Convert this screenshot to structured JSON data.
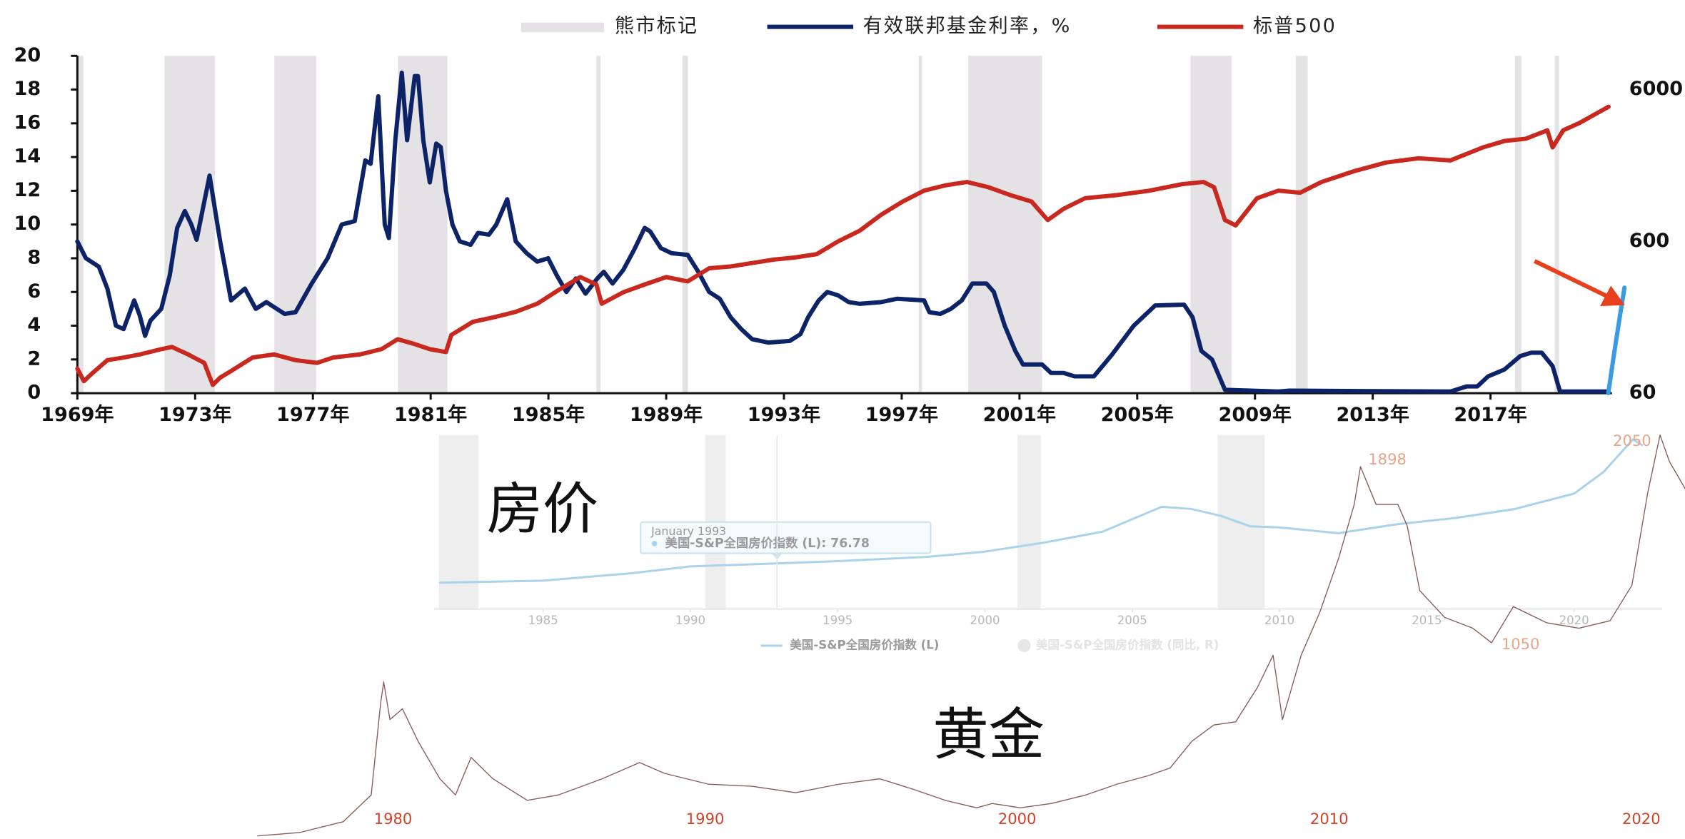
{
  "chart_data": [
    {
      "type": "line",
      "xlim": [
        1969,
        2022
      ],
      "xticks": [
        {
          "value": 1969,
          "label": "1969年"
        },
        {
          "value": 1973,
          "label": "1973年"
        },
        {
          "value": 1977,
          "label": "1977年"
        },
        {
          "value": 1981,
          "label": "1981年"
        },
        {
          "value": 1985,
          "label": "1985年"
        },
        {
          "value": 1989,
          "label": "1989年"
        },
        {
          "value": 1993,
          "label": "1993年"
        },
        {
          "value": 1997,
          "label": "1997年"
        },
        {
          "value": 2001,
          "label": "2001年"
        },
        {
          "value": 2005,
          "label": "2005年"
        },
        {
          "value": 2009,
          "label": "2009年"
        },
        {
          "value": 2013,
          "label": "2013年"
        },
        {
          "value": 2017,
          "label": "2017年"
        }
      ],
      "ylim": [
        0,
        20
      ],
      "yticks": [
        0,
        2,
        4,
        6,
        8,
        10,
        12,
        14,
        16,
        18,
        20
      ],
      "y2lim": [
        60,
        10000
      ],
      "y2ticks": [
        60,
        600,
        6000
      ],
      "y2scale": "log",
      "bear_markets": {
        "name": "熊市标记",
        "color": "#e4e2e4",
        "ranges": [
          [
            1969.0,
            1969.2
          ],
          [
            1971.96,
            1973.67
          ],
          [
            1975.69,
            1977.11
          ],
          [
            1979.89,
            1981.57
          ],
          [
            1986.63,
            1986.77
          ],
          [
            1989.55,
            1989.74
          ],
          [
            1997.58,
            1997.69
          ],
          [
            1999.26,
            2001.77
          ],
          [
            2006.81,
            2008.2
          ],
          [
            2010.39,
            2010.79
          ],
          [
            2017.83,
            2018.05
          ],
          [
            2019.18,
            2019.33
          ]
        ]
      },
      "series": [
        {
          "name": "有效联邦基金利率，%",
          "color": "#0d2367",
          "x": [
            1969.0,
            1969.29,
            1969.73,
            1970.02,
            1970.31,
            1970.57,
            1970.93,
            1971.12,
            1971.3,
            1971.48,
            1971.85,
            1972.14,
            1972.39,
            1972.65,
            1972.87,
            1973.05,
            1973.49,
            1973.85,
            1974.22,
            1974.69,
            1975.06,
            1975.42,
            1976.04,
            1976.41,
            1976.96,
            1977.5,
            1977.98,
            1978.42,
            1978.78,
            1978.96,
            1979.22,
            1979.44,
            1979.58,
            1979.8,
            1980.02,
            1980.2,
            1980.46,
            1980.57,
            1980.75,
            1980.97,
            1981.19,
            1981.34,
            1981.52,
            1981.74,
            1981.99,
            1982.36,
            1982.61,
            1982.98,
            1983.23,
            1983.6,
            1983.89,
            1984.26,
            1984.62,
            1984.99,
            1985.28,
            1985.61,
            1985.93,
            1986.26,
            1986.66,
            1986.88,
            1987.18,
            1987.54,
            1987.91,
            1988.27,
            1988.45,
            1988.82,
            1989.18,
            1989.73,
            1990.09,
            1990.46,
            1990.82,
            1991.19,
            1991.55,
            1991.92,
            1992.47,
            1993.2,
            1993.56,
            1993.82,
            1994.18,
            1994.47,
            1994.84,
            1995.2,
            1995.57,
            1996.3,
            1996.85,
            1997.76,
            1997.94,
            1998.31,
            1998.67,
            1999.04,
            1999.4,
            1999.88,
            2000.13,
            2000.5,
            2000.86,
            2001.12,
            2001.77,
            2002.07,
            2002.5,
            2002.87,
            2003.53,
            2004.15,
            2004.88,
            2005.61,
            2006.59,
            2006.88,
            2007.18,
            2007.54,
            2007.98,
            2009.8,
            2010.17,
            2015.64,
            2016.19,
            2016.55,
            2016.92,
            2017.47,
            2018.01,
            2018.38,
            2018.74,
            2019.11,
            2019.36,
            2021.01
          ],
          "values": [
            9.0,
            8.0,
            7.5,
            6.2,
            4.0,
            3.8,
            5.5,
            4.6,
            3.4,
            4.3,
            5.0,
            7.0,
            9.8,
            10.8,
            10.0,
            9.1,
            12.9,
            9.0,
            5.5,
            6.2,
            5.0,
            5.4,
            4.7,
            4.8,
            6.5,
            8.0,
            10.0,
            10.2,
            13.8,
            13.6,
            17.6,
            10.0,
            9.2,
            15.0,
            19.0,
            15.0,
            18.8,
            18.8,
            15.0,
            12.5,
            14.8,
            14.6,
            12.0,
            10.0,
            9.0,
            8.8,
            9.5,
            9.4,
            10.0,
            11.5,
            9.0,
            8.3,
            7.8,
            8.0,
            7.0,
            6.0,
            6.8,
            5.9,
            6.8,
            7.2,
            6.5,
            7.3,
            8.5,
            9.8,
            9.6,
            8.6,
            8.3,
            8.2,
            7.2,
            6.0,
            5.6,
            4.5,
            3.8,
            3.2,
            3.0,
            3.1,
            3.5,
            4.5,
            5.5,
            6.0,
            5.8,
            5.4,
            5.3,
            5.4,
            5.6,
            5.5,
            4.8,
            4.7,
            5.0,
            5.5,
            6.5,
            6.5,
            6.0,
            4.0,
            2.5,
            1.7,
            1.7,
            1.2,
            1.2,
            1.0,
            1.0,
            2.3,
            4.0,
            5.2,
            5.25,
            4.5,
            2.5,
            2.0,
            0.2,
            0.1,
            0.15,
            0.1,
            0.4,
            0.4,
            1.0,
            1.4,
            2.2,
            2.4,
            2.4,
            1.6,
            0.1,
            0.1
          ]
        },
        {
          "name": "标普500",
          "color": "#c8281e",
          "axis": "y2",
          "x": [
            1969.0,
            1969.22,
            1969.47,
            1970.02,
            1970.57,
            1971.12,
            1971.85,
            1972.21,
            1972.76,
            1973.31,
            1973.6,
            1973.85,
            1974.22,
            1974.95,
            1975.68,
            1976.41,
            1977.14,
            1977.69,
            1978.6,
            1979.33,
            1979.88,
            1980.42,
            1980.97,
            1981.52,
            1981.7,
            1982.43,
            1983.16,
            1983.89,
            1984.62,
            1985.35,
            1986.08,
            1986.63,
            1986.81,
            1987.54,
            1988.27,
            1989.0,
            1989.73,
            1990.46,
            1991.19,
            1991.92,
            1992.65,
            1993.38,
            1994.11,
            1994.84,
            1995.57,
            1996.3,
            1997.03,
            1997.76,
            1998.49,
            1999.22,
            1999.95,
            2000.68,
            2001.41,
            2001.96,
            2002.5,
            2003.23,
            2004.33,
            2005.42,
            2006.52,
            2007.25,
            2007.61,
            2007.98,
            2008.34,
            2009.07,
            2009.8,
            2010.53,
            2011.26,
            2012.36,
            2013.45,
            2014.55,
            2015.64,
            2016.74,
            2017.47,
            2018.2,
            2018.93,
            2019.11,
            2019.47,
            2020.02,
            2021.01
          ],
          "values": [
            87,
            72,
            80,
            99,
            103,
            108,
            117,
            121,
            108,
            95,
            68,
            76,
            84,
            103,
            108,
            99,
            95,
            103,
            108,
            117,
            136,
            127,
            117,
            112,
            145,
            177,
            190,
            206,
            233,
            287,
            349,
            312,
            233,
            277,
            312,
            349,
            327,
            399,
            410,
            432,
            455,
            470,
            494,
            600,
            705,
            898,
            1097,
            1295,
            1404,
            1477,
            1363,
            1212,
            1097,
            829,
            983,
            1155,
            1212,
            1295,
            1428,
            1477,
            1363,
            829,
            764,
            1155,
            1295,
            1254,
            1477,
            1739,
            1983,
            2115,
            2048,
            2494,
            2748,
            2846,
            3234,
            2494,
            3234,
            3612,
            4620
          ]
        },
        {
          "color": "#3b9be0",
          "axis": "y2",
          "x": [
            2021.0,
            2021.2,
            2021.35,
            2021.55
          ],
          "values": [
            60,
            110,
            170,
            297
          ]
        }
      ]
    },
    {
      "type": "line",
      "title": "房价",
      "xlim": [
        1981.3,
        2023
      ],
      "xticks": [
        1985,
        1990,
        1995,
        2000,
        2005,
        2010,
        2015,
        2020
      ],
      "ylim": [
        -10,
        320
      ],
      "color": "#a9d3ea",
      "x": [
        1981.5,
        1985,
        1988,
        1990,
        1993,
        1995,
        1998,
        2000,
        2002,
        2004,
        2006,
        2007,
        2008,
        2009,
        2010,
        2012,
        2014,
        2016,
        2018,
        2020,
        2021,
        2022,
        2022.3
      ],
      "values": [
        40,
        44,
        58,
        71,
        76.78,
        81,
        89,
        99,
        116,
        137,
        184,
        180,
        167,
        147,
        145,
        134,
        151,
        163,
        180,
        209,
        250,
        312,
        301
      ],
      "bear_markets": {
        "color": "#eeeeee",
        "ranges": [
          [
            1981.46,
            1982.8
          ],
          [
            1990.5,
            1991.2
          ],
          [
            2001.1,
            2001.9
          ],
          [
            2007.9,
            2009.5
          ]
        ]
      },
      "legend": [
        {
          "name": "美国-S&P全国房价指数 (L)",
          "color": "#a9d3ea"
        },
        {
          "name": "美国-S&P全国房价指数 (同比, R)",
          "color": "#e6e6e6"
        }
      ],
      "tooltip": {
        "title": "January 1993",
        "text": "美国-S&P全国房价指数 (L): 76.78"
      }
    },
    {
      "type": "line",
      "title": "黄金",
      "xlim": [
        1975.6,
        2021.4
      ],
      "xticks": [
        1980,
        1990,
        2000,
        2010,
        2020
      ],
      "tick_color": "#d0422a",
      "ylim": [
        105,
        2050
      ],
      "color": "#8a5a5a",
      "x": [
        1975.66,
        1977.0,
        1978.4,
        1979.3,
        1979.6,
        1979.7,
        1979.9,
        1980.3,
        1980.8,
        1981.5,
        1982.0,
        1982.5,
        1983.2,
        1984.3,
        1985.3,
        1986.7,
        1987.9,
        1988.7,
        1990.1,
        1991.5,
        1992.9,
        1994.3,
        1995.6,
        1996.7,
        1997.7,
        1998.7,
        1999.2,
        2000.1,
        2001.1,
        2002.2,
        2003.2,
        2004.2,
        2004.9,
        2005.6,
        2006.3,
        2007.0,
        2007.7,
        2008.2,
        2008.5,
        2009.1,
        2009.7,
        2010.3,
        2010.8,
        2011.0,
        2011.5,
        2012.2,
        2012.5,
        2012.9,
        2013.7,
        2014.6,
        2015.2,
        2015.9,
        2016.97,
        2018.0,
        2019.0,
        2019.7,
        2020.2,
        2020.6,
        2020.9,
        2021.4
      ],
      "values": [
        120,
        136,
        188,
        317,
        757,
        861,
        680,
        732,
        576,
        395,
        317,
        498,
        395,
        291,
        317,
        395,
        473,
        421,
        369,
        359,
        328,
        369,
        395,
        343,
        291,
        255,
        276,
        255,
        276,
        317,
        369,
        410,
        447,
        576,
        654,
        669,
        835,
        990,
        680,
        990,
        1198,
        1457,
        1716,
        1898,
        1716,
        1716,
        1612,
        1301,
        1172,
        1120,
        1050,
        1224,
        1146,
        1120,
        1156,
        1327,
        1768,
        2050,
        1923,
        1793
      ],
      "annotations": [
        {
          "x": 2011.0,
          "y": 1898
        },
        {
          "x": 2015.2,
          "y": 1050
        },
        {
          "x": 2020.6,
          "y": 2050
        }
      ],
      "annotation_color": "#eaa487"
    }
  ]
}
